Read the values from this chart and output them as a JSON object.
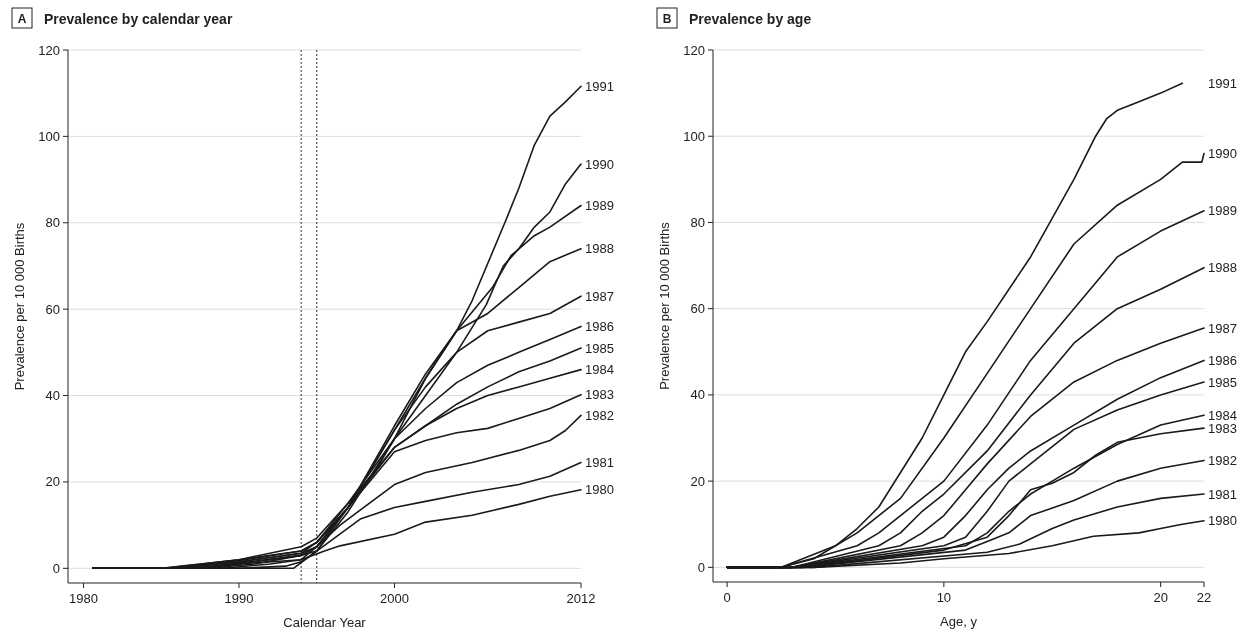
{
  "chart_data": [
    {
      "type": "line",
      "title": "Prevalence by calendar year",
      "annotations": [
        "A"
      ],
      "xlabel": "Calendar Year",
      "ylabel": "Prevalence per 10 000 Births",
      "xlim": [
        1979,
        2012
      ],
      "xticks": [
        1980,
        1990,
        2000,
        2012
      ],
      "ylim": [
        -3.4,
        120
      ],
      "yticks": [
        0,
        20,
        40,
        60,
        80,
        100,
        120
      ],
      "grid": "y",
      "ref_lines": [
        {
          "axis": "x",
          "value": 1994,
          "line_style": "dotted",
          "color": "#333333"
        },
        {
          "axis": "x",
          "value": 1995,
          "line_style": "dotted",
          "color": "#333333"
        }
      ],
      "series": [
        {
          "name": "1980",
          "color": "#1a1a1a",
          "x": [
            1980.6,
            1988,
            1990,
            1994,
            1995.5,
            1996.5,
            2000,
            2002,
            2005,
            2008,
            2010,
            2012
          ],
          "values": [
            0,
            0,
            1,
            2,
            4,
            5.2,
            7.9,
            10.7,
            12.3,
            14.8,
            16.7,
            18.2
          ]
        },
        {
          "name": "1981",
          "color": "#1a1a1a",
          "x": [
            1980.6,
            1987,
            1990,
            1994,
            1995,
            1997.8,
            2000,
            2002,
            2005,
            2008,
            2010,
            2012
          ],
          "values": [
            0,
            0,
            1.2,
            3,
            4,
            11.4,
            14.1,
            15.5,
            17.6,
            19.4,
            21.3,
            24.5
          ]
        },
        {
          "name": "1982",
          "color": "#1a1a1a",
          "x": [
            1980.6,
            1986,
            1990,
            1994,
            1995,
            1996.5,
            2000,
            2002,
            2005,
            2008,
            2010,
            2011,
            2012
          ],
          "values": [
            0,
            0,
            1.5,
            3.5,
            5,
            10,
            19.4,
            22.2,
            24.5,
            27.3,
            29.6,
            31.9,
            35.4
          ]
        },
        {
          "name": "1983",
          "color": "#1a1a1a",
          "x": [
            1980.6,
            1985.5,
            1990,
            1994,
            1995,
            1997,
            2000,
            2002,
            2004,
            2006,
            2008,
            2010,
            2012
          ],
          "values": [
            0,
            0,
            1.8,
            4,
            6,
            14,
            27,
            29.6,
            31.4,
            32.4,
            34.7,
            37,
            40.2
          ]
        },
        {
          "name": "1984",
          "color": "#1a1a1a",
          "x": [
            1980.6,
            1985.2,
            1990,
            1994,
            1995,
            1997,
            2000,
            2002,
            2004,
            2006,
            2008,
            2010,
            2012
          ],
          "values": [
            0,
            0,
            2,
            5,
            7,
            15,
            28,
            33,
            37,
            40,
            42,
            44,
            46
          ]
        },
        {
          "name": "1985",
          "color": "#1a1a1a",
          "x": [
            1980.6,
            1985,
            1990,
            1994,
            1995,
            1997,
            2000,
            2002,
            2004,
            2006,
            2008,
            2010,
            2012
          ],
          "values": [
            0,
            0,
            2,
            4,
            6,
            14,
            28,
            33,
            38,
            42,
            45.5,
            48,
            51
          ]
        },
        {
          "name": "1986",
          "color": "#1a1a1a",
          "x": [
            1980.6,
            1986,
            1990,
            1994,
            1995,
            1997,
            2000,
            2002,
            2004,
            2006,
            2008,
            2010,
            2012
          ],
          "values": [
            0,
            0,
            1.5,
            3.5,
            6,
            15,
            30,
            37,
            43,
            47,
            50,
            53,
            56
          ]
        },
        {
          "name": "1987",
          "color": "#1a1a1a",
          "x": [
            1980.6,
            1987,
            1990,
            1994,
            1995,
            1997,
            2000,
            2002,
            2004,
            2006,
            2008,
            2010,
            2012
          ],
          "values": [
            0,
            0,
            1,
            3,
            5,
            14,
            32,
            42,
            50,
            55,
            57,
            59,
            63
          ]
        },
        {
          "name": "1988",
          "color": "#1a1a1a",
          "x": [
            1980.6,
            1988,
            1991,
            1994,
            1995,
            1997,
            2000,
            2002,
            2004,
            2006,
            2008,
            2010,
            2012
          ],
          "values": [
            0,
            0,
            1,
            3,
            5,
            14,
            33,
            45,
            55,
            59,
            65,
            71,
            74
          ]
        },
        {
          "name": "1989",
          "color": "#1a1a1a",
          "x": [
            1980.6,
            1989,
            1992,
            1994,
            1995,
            1997,
            2000,
            2002,
            2004,
            2006.3,
            2007.5,
            2009,
            2010,
            2012
          ],
          "values": [
            0,
            0,
            1,
            2,
            5,
            14,
            32,
            44,
            55,
            65,
            72.4,
            77,
            79,
            84
          ]
        },
        {
          "name": "1990",
          "color": "#1a1a1a",
          "x": [
            1980.6,
            1990,
            1993,
            1994,
            1995,
            1997,
            2000,
            2002,
            2004,
            2005.9,
            2007,
            2008,
            2009,
            2010,
            2011,
            2012
          ],
          "values": [
            0,
            0,
            0.5,
            1.5,
            4,
            13,
            30,
            40,
            50,
            61,
            70,
            74,
            79,
            82.5,
            89,
            93.6
          ]
        },
        {
          "name": "1991",
          "color": "#1a1a1a",
          "x": [
            1980.6,
            1993.5,
            1995,
            1997,
            1999,
            2000,
            2002,
            2004,
            2005,
            2007.1,
            2008,
            2009,
            2010,
            2011,
            2012
          ],
          "values": [
            0,
            0,
            4,
            14,
            24,
            30,
            44,
            55,
            62,
            80,
            88,
            98,
            104.7,
            108,
            111.6
          ]
        }
      ]
    },
    {
      "type": "line",
      "title": "Prevalence by age",
      "annotations": [
        "B"
      ],
      "xlabel": "Age, y",
      "ylabel": "Prevalence per 10 000 Births",
      "xlim": [
        -0.65,
        22
      ],
      "xticks": [
        0,
        10,
        20,
        22
      ],
      "ylim": [
        -3.4,
        120
      ],
      "yticks": [
        0,
        20,
        40,
        60,
        80,
        100,
        120
      ],
      "grid": "y",
      "series": [
        {
          "name": "1980",
          "color": "#1a1a1a",
          "x": [
            0,
            4,
            8,
            10,
            13,
            15,
            16.9,
            19,
            20,
            21,
            22
          ],
          "values": [
            0,
            0,
            1,
            2,
            3.2,
            5,
            7.2,
            8,
            9,
            10,
            10.8
          ]
        },
        {
          "name": "1981",
          "color": "#1a1a1a",
          "x": [
            0,
            4,
            12,
            13.5,
            15,
            16,
            18,
            20,
            22
          ],
          "values": [
            0,
            0,
            3.5,
            5.4,
            9,
            11,
            14,
            16,
            17
          ]
        },
        {
          "name": "1982",
          "color": "#1a1a1a",
          "x": [
            0,
            3.5,
            11,
            12,
            13,
            14,
            16,
            18,
            20,
            22
          ],
          "values": [
            0,
            0,
            4,
            6,
            8,
            12,
            15.5,
            20,
            23,
            24.8
          ]
        },
        {
          "name": "1983",
          "color": "#1a1a1a",
          "x": [
            0,
            3.5,
            10,
            12,
            13,
            14,
            15,
            16,
            17,
            18,
            20,
            22
          ],
          "values": [
            0,
            0,
            4,
            7,
            12,
            18,
            19.5,
            22,
            26,
            29,
            31,
            32.3
          ]
        },
        {
          "name": "1984",
          "color": "#1a1a1a",
          "x": [
            0,
            3.2,
            11,
            12,
            13,
            14,
            15,
            16,
            18,
            20,
            22
          ],
          "values": [
            0,
            0,
            5,
            8,
            13,
            17,
            20,
            23,
            28.5,
            33,
            35.3
          ]
        },
        {
          "name": "1985",
          "color": "#1a1a1a",
          "x": [
            0,
            3,
            10,
            11,
            12,
            13,
            14,
            15,
            16,
            18,
            20,
            22
          ],
          "values": [
            0,
            0,
            5,
            7,
            13,
            20,
            24,
            28,
            32,
            36.5,
            40,
            43
          ]
        },
        {
          "name": "1986",
          "color": "#1a1a1a",
          "x": [
            0,
            3,
            9,
            10,
            11,
            12,
            13,
            14,
            16,
            18,
            20,
            22
          ],
          "values": [
            0,
            0,
            5,
            7,
            12,
            18,
            23,
            27,
            33,
            39,
            44,
            48
          ]
        },
        {
          "name": "1987",
          "color": "#1a1a1a",
          "x": [
            0,
            3,
            8,
            9,
            10,
            11,
            12,
            14,
            16,
            18,
            20,
            22
          ],
          "values": [
            0,
            0,
            5,
            8,
            12,
            18,
            24,
            35,
            43,
            48,
            52,
            55.5
          ]
        },
        {
          "name": "1988",
          "color": "#1a1a1a",
          "x": [
            0,
            3,
            7,
            8,
            9,
            10,
            12,
            14,
            16,
            18,
            20,
            22
          ],
          "values": [
            0,
            0,
            5,
            8,
            13,
            17,
            27,
            40,
            52,
            60,
            64.5,
            69.5
          ]
        },
        {
          "name": "1989",
          "color": "#1a1a1a",
          "x": [
            0,
            2.5,
            6,
            7,
            8,
            10,
            12,
            14,
            16,
            18,
            20,
            22
          ],
          "values": [
            0,
            0,
            5,
            8,
            12,
            20,
            33,
            48,
            60,
            72,
            78,
            82.7
          ]
        },
        {
          "name": "1990",
          "color": "#1a1a1a",
          "x": [
            0,
            2.5,
            5,
            6,
            8,
            10,
            12,
            14,
            16,
            18,
            20,
            21,
            21.9,
            22
          ],
          "values": [
            0,
            0,
            5,
            8,
            16,
            30,
            45,
            60,
            75,
            84,
            90,
            94,
            94,
            96
          ]
        },
        {
          "name": "1991",
          "color": "#1a1a1a",
          "x": [
            0,
            2.5,
            4,
            5,
            6,
            7,
            8,
            9,
            10,
            11,
            12,
            14,
            16,
            17,
            17.5,
            18,
            19,
            20,
            21
          ],
          "values": [
            0,
            0,
            2,
            5,
            9,
            14,
            22,
            30,
            40,
            50,
            57,
            72,
            90,
            100,
            104,
            106,
            108,
            110,
            112.3
          ]
        }
      ]
    }
  ]
}
